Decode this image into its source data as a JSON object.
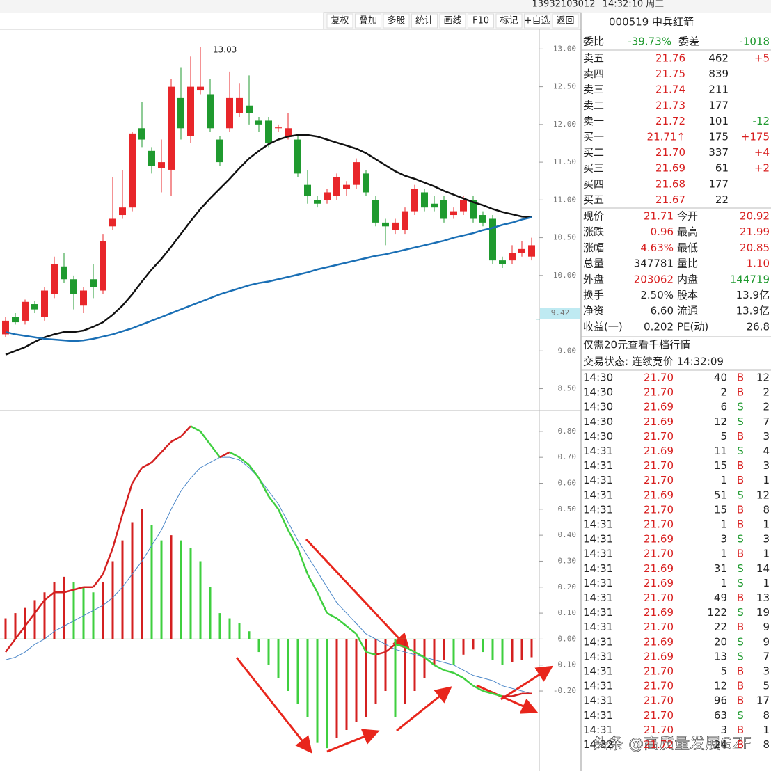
{
  "top_bar": {
    "account": "13932103012",
    "time": "14:32:10 周三"
  },
  "toolbar": [
    "复权",
    "叠加",
    "多股",
    "统计",
    "画线",
    "F10",
    "标记",
    "+自选",
    "返回"
  ],
  "chart_data": [
    {
      "type": "candlestick",
      "up_color": "#e8262a",
      "down_color": "#1f9a2f",
      "annotation": "13.03",
      "price_marker": {
        "value": 9.42,
        "label": "9.42"
      },
      "ylim": [
        8.21,
        13.28
      ],
      "yticks": [
        {
          "value": 13,
          "label": "13.00"
        },
        {
          "value": 12.5,
          "label": "12.50"
        },
        {
          "value": 12,
          "label": "12.00"
        },
        {
          "value": 11.5,
          "label": "11.50"
        },
        {
          "value": 11,
          "label": "11.00"
        },
        {
          "value": 10.5,
          "label": "10.50"
        },
        {
          "value": 10,
          "label": "10.00"
        },
        {
          "value": 9,
          "label": "9.00"
        },
        {
          "value": 8.5,
          "label": "8.50"
        }
      ],
      "open": [
        9.22,
        9.45,
        9.4,
        9.62,
        9.45,
        9.75,
        10.12,
        9.95,
        9.6,
        9.95,
        9.8,
        10.65,
        10.8,
        10.9,
        11.95,
        11.65,
        11.42,
        11.4,
        12.35,
        11.85,
        12.45,
        12.4,
        11.8,
        11.95,
        12.15,
        12.25,
        12.05,
        12.05,
        11.95,
        11.85,
        11.8,
        11.2,
        11.0,
        11.0,
        11.05,
        11.15,
        11.2,
        11.35,
        11.0,
        10.7,
        10.6,
        10.6,
        10.85,
        11.1,
        10.95,
        11.0,
        10.8,
        10.85,
        11.0,
        10.8,
        10.75,
        10.2,
        10.2,
        10.3,
        10.25
      ],
      "high": [
        9.45,
        9.5,
        9.68,
        9.66,
        9.85,
        10.25,
        10.3,
        10.0,
        9.85,
        10.15,
        10.55,
        11.3,
        11.4,
        11.9,
        12.3,
        11.7,
        11.8,
        12.6,
        12.75,
        12.9,
        13.03,
        12.6,
        11.85,
        12.7,
        12.55,
        12.65,
        12.1,
        12.1,
        12.0,
        12.15,
        11.85,
        11.4,
        11.05,
        11.15,
        11.35,
        11.25,
        11.55,
        11.4,
        11.05,
        10.75,
        10.75,
        10.9,
        11.2,
        11.15,
        11.05,
        11.05,
        10.9,
        11.05,
        11.05,
        10.85,
        10.8,
        10.25,
        10.4,
        10.45,
        10.5
      ],
      "low": [
        9.18,
        9.35,
        9.35,
        9.5,
        9.4,
        9.7,
        9.9,
        9.55,
        9.5,
        9.7,
        9.75,
        10.6,
        10.75,
        10.85,
        11.7,
        11.35,
        11.1,
        11.05,
        11.8,
        11.75,
        12.4,
        11.9,
        11.45,
        11.9,
        12.1,
        12.0,
        11.9,
        11.7,
        11.9,
        11.8,
        11.3,
        10.95,
        10.9,
        10.95,
        11.0,
        11.05,
        11.15,
        11.05,
        10.65,
        10.4,
        10.55,
        10.55,
        10.8,
        10.85,
        10.85,
        10.7,
        10.75,
        10.8,
        10.7,
        10.65,
        10.15,
        10.1,
        10.15,
        10.25,
        10.2
      ],
      "close": [
        9.4,
        9.38,
        9.65,
        9.55,
        9.8,
        10.15,
        9.95,
        9.75,
        9.8,
        9.85,
        10.45,
        10.75,
        10.9,
        11.88,
        11.8,
        11.45,
        11.5,
        12.5,
        11.95,
        12.5,
        12.5,
        11.95,
        11.5,
        12.35,
        12.35,
        12.15,
        12.0,
        11.75,
        11.96,
        11.95,
        11.35,
        11.05,
        10.95,
        11.1,
        11.3,
        11.2,
        11.5,
        11.1,
        10.7,
        10.65,
        10.7,
        10.85,
        11.15,
        10.9,
        10.9,
        10.75,
        10.85,
        11.0,
        10.75,
        10.7,
        10.2,
        10.15,
        10.3,
        10.35,
        10.4
      ],
      "lines": [
        {
          "color": "#111111",
          "values": [
            8.95,
            9.0,
            9.05,
            9.12,
            9.18,
            9.22,
            9.25,
            9.25,
            9.27,
            9.32,
            9.38,
            9.48,
            9.6,
            9.75,
            9.92,
            10.08,
            10.22,
            10.38,
            10.55,
            10.72,
            10.88,
            11.02,
            11.15,
            11.28,
            11.42,
            11.55,
            11.65,
            11.74,
            11.8,
            11.84,
            11.86,
            11.86,
            11.84,
            11.8,
            11.76,
            11.72,
            11.68,
            11.62,
            11.54,
            11.46,
            11.38,
            11.32,
            11.28,
            11.23,
            11.18,
            11.12,
            11.07,
            11.02,
            10.97,
            10.93,
            10.88,
            10.84,
            10.81,
            10.78,
            10.77
          ]
        },
        {
          "color": "#1a6fb5",
          "values": [
            9.25,
            9.22,
            9.2,
            9.18,
            9.16,
            9.15,
            9.14,
            9.13,
            9.14,
            9.16,
            9.19,
            9.22,
            9.26,
            9.3,
            9.35,
            9.4,
            9.45,
            9.5,
            9.55,
            9.6,
            9.65,
            9.7,
            9.75,
            9.79,
            9.83,
            9.87,
            9.9,
            9.92,
            9.95,
            9.98,
            10.01,
            10.04,
            10.08,
            10.11,
            10.14,
            10.17,
            10.2,
            10.23,
            10.26,
            10.28,
            10.31,
            10.34,
            10.37,
            10.4,
            10.43,
            10.46,
            10.5,
            10.53,
            10.56,
            10.6,
            10.63,
            10.67,
            10.7,
            10.74,
            10.77
          ]
        }
      ]
    },
    {
      "type": "macd",
      "up_color": "#d42020",
      "down_color": "#3fcf3f",
      "dea_color": "#4a86c8",
      "ylim": [
        -0.5,
        0.88
      ],
      "yticks": [
        {
          "value": 0.8,
          "label": "0.80"
        },
        {
          "value": 0.7,
          "label": "0.70"
        },
        {
          "value": 0.6,
          "label": "0.60"
        },
        {
          "value": 0.5,
          "label": "0.50"
        },
        {
          "value": 0.4,
          "label": "0.40"
        },
        {
          "value": 0.3,
          "label": "0.30"
        },
        {
          "value": 0.2,
          "label": "0.20"
        },
        {
          "value": 0.1,
          "label": "0.10"
        },
        {
          "value": 0,
          "label": "0.00"
        },
        {
          "value": -0.1,
          "label": "-0.10"
        },
        {
          "value": -0.2,
          "label": "-0.20"
        }
      ],
      "histogram": [
        0.08,
        0.1,
        0.12,
        0.15,
        0.18,
        0.22,
        0.24,
        0.22,
        0.2,
        0.18,
        0.22,
        0.3,
        0.38,
        0.45,
        0.5,
        0.44,
        0.38,
        0.4,
        0.38,
        0.35,
        0.3,
        0.2,
        0.1,
        0.08,
        0.06,
        0.03,
        -0.05,
        -0.1,
        -0.15,
        -0.2,
        -0.25,
        -0.3,
        -0.4,
        -0.42,
        -0.38,
        -0.35,
        -0.32,
        -0.3,
        -0.25,
        -0.2,
        -0.3,
        -0.25,
        -0.2,
        -0.15,
        -0.1,
        -0.08,
        -0.1,
        -0.06,
        -0.04,
        -0.05,
        -0.08,
        -0.1,
        -0.09,
        -0.08,
        -0.07
      ],
      "dif": [
        -0.05,
        0.0,
        0.05,
        0.1,
        0.15,
        0.18,
        0.18,
        0.19,
        0.2,
        0.2,
        0.25,
        0.35,
        0.48,
        0.6,
        0.66,
        0.68,
        0.72,
        0.76,
        0.78,
        0.82,
        0.8,
        0.75,
        0.7,
        0.72,
        0.7,
        0.67,
        0.62,
        0.55,
        0.5,
        0.42,
        0.35,
        0.25,
        0.18,
        0.1,
        0.08,
        0.05,
        0.02,
        -0.05,
        -0.06,
        -0.05,
        -0.02,
        -0.03,
        -0.05,
        -0.07,
        -0.1,
        -0.12,
        -0.13,
        -0.15,
        -0.18,
        -0.2,
        -0.21,
        -0.22,
        -0.22,
        -0.21,
        -0.21
      ],
      "dea": [
        -0.08,
        -0.07,
        -0.05,
        -0.02,
        0.0,
        0.03,
        0.05,
        0.07,
        0.09,
        0.11,
        0.13,
        0.16,
        0.2,
        0.25,
        0.3,
        0.36,
        0.42,
        0.5,
        0.57,
        0.62,
        0.66,
        0.68,
        0.7,
        0.7,
        0.69,
        0.66,
        0.62,
        0.57,
        0.52,
        0.45,
        0.38,
        0.32,
        0.26,
        0.2,
        0.14,
        0.1,
        0.06,
        0.02,
        0.0,
        -0.02,
        -0.04,
        -0.05,
        -0.06,
        -0.07,
        -0.08,
        -0.09,
        -0.1,
        -0.12,
        -0.14,
        -0.15,
        -0.16,
        -0.18,
        -0.19,
        -0.2,
        -0.21
      ]
    }
  ],
  "panel": {
    "stock": "000519 中兵红箭",
    "ratio": [
      "委比",
      "-39.73%",
      "委差",
      "-1018"
    ],
    "order_book": [
      [
        "卖五",
        "21.76",
        "462",
        "+5"
      ],
      [
        "卖四",
        "21.75",
        "839"
      ],
      [
        "卖三",
        "21.74",
        "211"
      ],
      [
        "卖二",
        "21.73",
        "177"
      ],
      [
        "卖一",
        "21.72",
        "101",
        "-12"
      ],
      [
        "买一",
        "21.71↑",
        "175",
        "+175"
      ],
      [
        "买二",
        "21.70",
        "337",
        "+4"
      ],
      [
        "买三",
        "21.69",
        "61",
        "+2"
      ],
      [
        "买四",
        "21.68",
        "177"
      ],
      [
        "买五",
        "21.67",
        "22"
      ]
    ],
    "quote": [
      [
        {
          "text": "现价"
        },
        {
          "text": "21.71",
          "color": "#d81e1e"
        },
        {
          "text": "今开"
        },
        {
          "text": "20.92",
          "color": "#d81e1e"
        }
      ],
      [
        {
          "text": "涨跌"
        },
        {
          "text": "0.96",
          "color": "#d81e1e"
        },
        {
          "text": "最高"
        },
        {
          "text": "21.99",
          "color": "#d81e1e"
        }
      ],
      [
        {
          "text": "涨幅"
        },
        {
          "text": "4.63%",
          "color": "#d81e1e"
        },
        {
          "text": "最低"
        },
        {
          "text": "20.85",
          "color": "#d81e1e"
        }
      ],
      [
        {
          "text": "总量"
        },
        {
          "text": "347781",
          "color": "#222222"
        },
        {
          "text": "量比"
        },
        {
          "text": "1.10",
          "color": "#d81e1e"
        }
      ],
      [
        {
          "text": "外盘"
        },
        {
          "text": "203062",
          "color": "#d81e1e"
        },
        {
          "text": "内盘"
        },
        {
          "text": "144719",
          "color": "#1f9a2f"
        }
      ],
      [
        {
          "text": "换手"
        },
        {
          "text": "2.50%",
          "color": "#222222"
        },
        {
          "text": "股本"
        },
        {
          "text": "13.9亿",
          "color": "#222222"
        }
      ],
      [
        {
          "text": "净资"
        },
        {
          "text": "6.60",
          "color": "#222222"
        },
        {
          "text": "流通"
        },
        {
          "text": "13.9亿",
          "color": "#222222"
        }
      ],
      [
        {
          "text": "收益(一)"
        },
        {
          "text": "0.202",
          "color": "#222222"
        },
        {
          "text": "PE(动)"
        },
        {
          "text": "26.8",
          "color": "#222222"
        }
      ]
    ],
    "promo": "仅需20元查看千档行情",
    "status": "交易状态: 连续竞价 14:32:09",
    "trades": [
      [
        "14:30",
        "21.70",
        "40",
        "B",
        "12"
      ],
      [
        "14:30",
        "21.70",
        "2",
        "B",
        "2"
      ],
      [
        "14:30",
        "21.69",
        "6",
        "S",
        "2"
      ],
      [
        "14:30",
        "21.69",
        "12",
        "S",
        "7"
      ],
      [
        "14:30",
        "21.70",
        "5",
        "B",
        "3"
      ],
      [
        "14:31",
        "21.69",
        "11",
        "S",
        "4"
      ],
      [
        "14:31",
        "21.70",
        "15",
        "B",
        "3"
      ],
      [
        "14:31",
        "21.70",
        "1",
        "B",
        "1"
      ],
      [
        "14:31",
        "21.69",
        "51",
        "S",
        "12"
      ],
      [
        "14:31",
        "21.70",
        "15",
        "B",
        "8"
      ],
      [
        "14:31",
        "21.70",
        "1",
        "B",
        "1"
      ],
      [
        "14:31",
        "21.69",
        "3",
        "S",
        "3"
      ],
      [
        "14:31",
        "21.70",
        "1",
        "B",
        "1"
      ],
      [
        "14:31",
        "21.69",
        "31",
        "S",
        "14"
      ],
      [
        "14:31",
        "21.69",
        "1",
        "S",
        "1"
      ],
      [
        "14:31",
        "21.70",
        "49",
        "B",
        "13"
      ],
      [
        "14:31",
        "21.69",
        "122",
        "S",
        "19"
      ],
      [
        "14:31",
        "21.70",
        "22",
        "B",
        "9"
      ],
      [
        "14:31",
        "21.69",
        "20",
        "S",
        "9"
      ],
      [
        "14:31",
        "21.69",
        "13",
        "S",
        "7"
      ],
      [
        "14:31",
        "21.70",
        "5",
        "B",
        "3"
      ],
      [
        "14:31",
        "21.70",
        "12",
        "B",
        "5"
      ],
      [
        "14:31",
        "21.70",
        "96",
        "B",
        "17"
      ],
      [
        "14:31",
        "21.70",
        "63",
        "S",
        "8"
      ],
      [
        "14:31",
        "21.70",
        "3",
        "B",
        "1"
      ],
      [
        "14:32",
        "21.72",
        "24",
        "B",
        "8"
      ]
    ]
  },
  "watermark": "头条 @高质量发展GZF"
}
